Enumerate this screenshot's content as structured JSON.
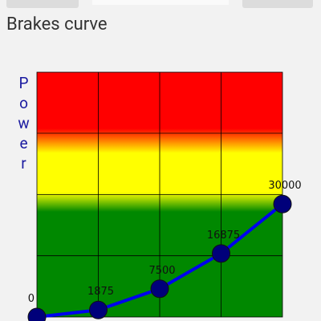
{
  "chart_data": {
    "type": "line",
    "title": "Brakes curve",
    "y_label": "Power",
    "categories": [
      null,
      null,
      null,
      null,
      null
    ],
    "series": [
      {
        "color": "#0000ee",
        "marker_color": "#00007a",
        "values": [
          0,
          1875,
          7500,
          16875,
          30000
        ]
      }
    ],
    "ylim": [
      0,
      65000
    ]
  }
}
